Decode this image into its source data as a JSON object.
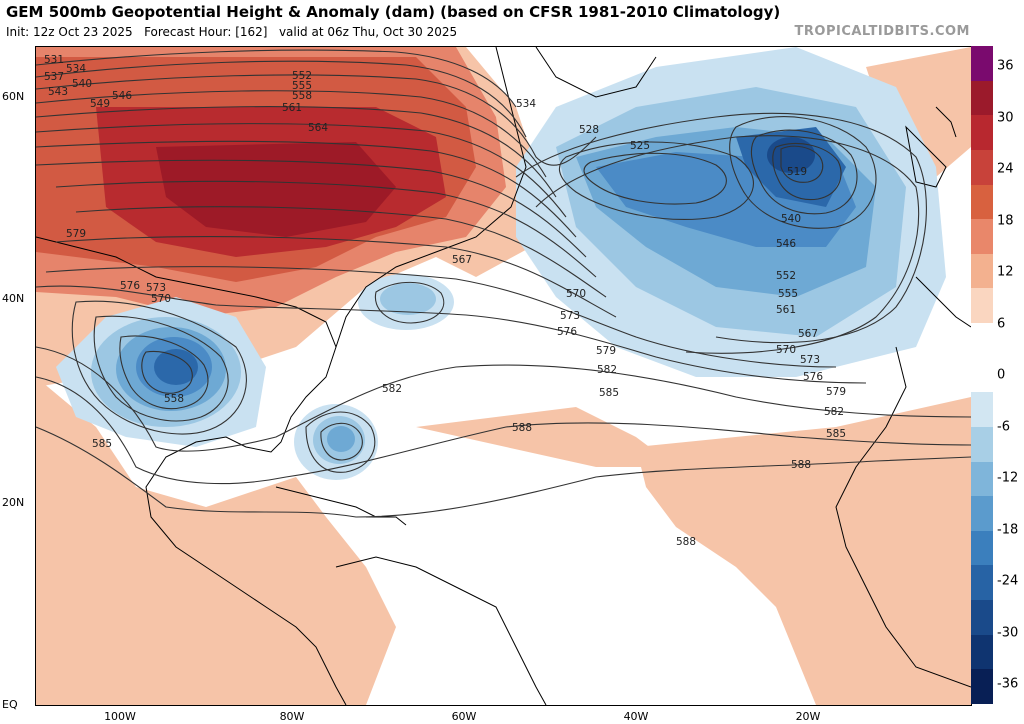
{
  "header": {
    "title": "GEM 500mb Geopotential Height & Anomaly (dam) (based on CFSR 1981-2010 Climatology)",
    "init": "Init: 12z Oct 23 2025",
    "forecast_hour": "Forecast Hour: [162]",
    "valid": "valid at 06z Thu, Oct 30 2025",
    "brand": "TROPICALTIDBITS.COM"
  },
  "axes": {
    "latitudes": [
      "60N",
      "40N",
      "20N",
      "EQ"
    ],
    "longitudes": [
      "100W",
      "80W",
      "60W",
      "40W",
      "20W"
    ]
  },
  "colorbar": {
    "labels": [
      "36",
      "30",
      "24",
      "18",
      "12",
      "6",
      "0",
      "-6",
      "-12",
      "-18",
      "-24",
      "-30",
      "-36"
    ],
    "colors": [
      "#7a0a6e",
      "#9b1a2b",
      "#b8282f",
      "#c8423a",
      "#d8613f",
      "#e9876a",
      "#f3b18f",
      "#fad6c0",
      "#ffffff",
      "#ffffff",
      "#d2e6f2",
      "#a8cfe6",
      "#7fb5da",
      "#5b9bcd",
      "#3b7fbd",
      "#2763a5",
      "#1a4a8a",
      "#0f3470",
      "#081f55"
    ]
  },
  "contours": {
    "values": [
      "531",
      "534",
      "537",
      "540",
      "543",
      "546",
      "549",
      "552",
      "555",
      "558",
      "561",
      "564",
      "567",
      "570",
      "573",
      "576",
      "579",
      "582",
      "585",
      "588",
      "525",
      "528",
      "519",
      "558"
    ]
  },
  "features": {
    "lows": [
      "Southern Plains low",
      "Bahamas low",
      "North Atlantic low",
      "Western Atlantic low"
    ],
    "ridge": "Great Lakes ridge"
  }
}
